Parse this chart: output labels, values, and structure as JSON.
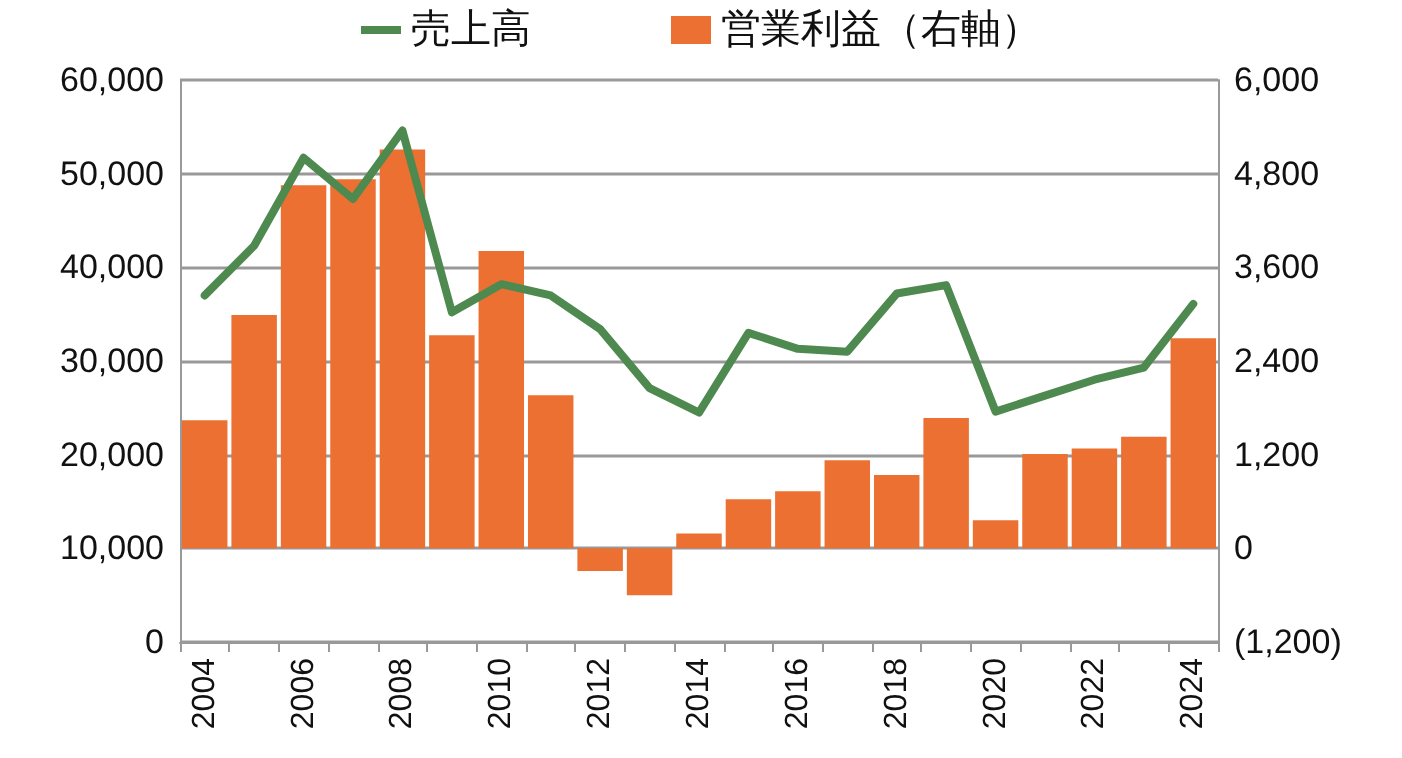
{
  "chart_data": {
    "type": "bar",
    "categories": [
      "2004",
      null,
      "2006",
      null,
      "2008",
      null,
      "2010",
      null,
      "2012",
      null,
      "2014",
      null,
      "2016",
      null,
      "2018",
      null,
      "2020",
      null,
      "2022",
      null,
      "2024"
    ],
    "series": [
      {
        "name": "売上高",
        "type": "line",
        "color": "#4e8a4f",
        "values": [
          37000,
          42300,
          51700,
          47300,
          54600,
          35200,
          38200,
          37000,
          33400,
          27100,
          24500,
          33000,
          31300,
          31000,
          37200,
          38100,
          24600,
          26300,
          28000,
          29300,
          36100
        ]
      },
      {
        "name": "営業利益（右軸）",
        "axis": "y2",
        "color": "#eb7032",
        "values": [
          1640,
          2990,
          4650,
          4730,
          5110,
          2730,
          3810,
          1960,
          -290,
          -600,
          190,
          630,
          730,
          1130,
          940,
          1670,
          360,
          1210,
          1280,
          1430,
          2690
        ]
      }
    ],
    "ylim": [
      0,
      60000
    ],
    "yticks": [
      {
        "value": 0,
        "label": "0"
      },
      {
        "value": 10000,
        "label": "10,000"
      },
      {
        "value": 20000,
        "label": "20,000"
      },
      {
        "value": 30000,
        "label": "30,000"
      },
      {
        "value": 40000,
        "label": "40,000"
      },
      {
        "value": 50000,
        "label": "50,000"
      },
      {
        "value": 60000,
        "label": "60,000"
      }
    ],
    "y2lim": [
      -1200,
      6000
    ],
    "y2ticks": [
      {
        "value": -1200,
        "label": "(1,200)"
      },
      {
        "value": 0,
        "label": "0"
      },
      {
        "value": 1200,
        "label": "1,200"
      },
      {
        "value": 2400,
        "label": "2,400"
      },
      {
        "value": 3600,
        "label": "3,600"
      },
      {
        "value": 4800,
        "label": "4,800"
      },
      {
        "value": 6000,
        "label": "6,000"
      }
    ],
    "grid": "y",
    "legend": "top",
    "marker": "none",
    "line_style": "solid"
  }
}
